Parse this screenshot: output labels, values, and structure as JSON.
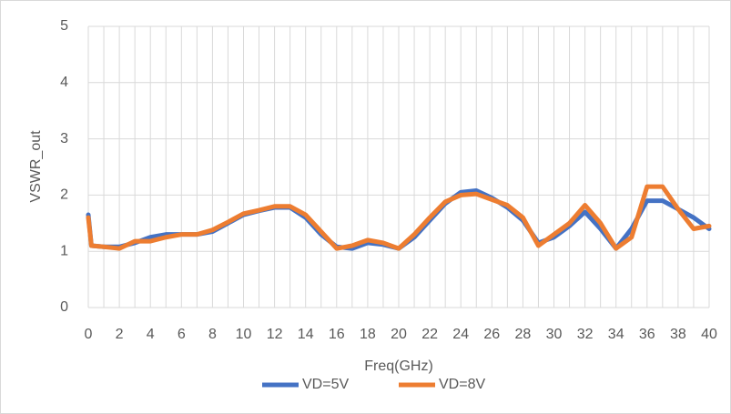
{
  "chart_data": {
    "type": "line",
    "x_label": "Freq(GHz)",
    "y_label": "VSWR_out",
    "x": [
      0,
      0.2,
      1,
      2,
      3,
      4,
      5,
      6,
      7,
      8,
      9,
      10,
      11,
      12,
      13,
      14,
      15,
      16,
      17,
      18,
      19,
      20,
      21,
      22,
      23,
      24,
      25,
      26,
      27,
      28,
      29,
      30,
      31,
      32,
      33,
      34,
      35,
      36,
      37,
      38,
      39,
      40
    ],
    "series": [
      {
        "name": "VD=5V",
        "color": "#4472c4",
        "values": [
          1.65,
          1.1,
          1.08,
          1.08,
          1.15,
          1.25,
          1.3,
          1.3,
          1.3,
          1.35,
          1.5,
          1.65,
          1.72,
          1.78,
          1.78,
          1.6,
          1.3,
          1.08,
          1.05,
          1.15,
          1.12,
          1.05,
          1.25,
          1.55,
          1.85,
          2.05,
          2.08,
          1.95,
          1.78,
          1.55,
          1.15,
          1.25,
          1.45,
          1.7,
          1.4,
          1.05,
          1.4,
          1.9,
          1.9,
          1.75,
          1.6,
          1.4
        ]
      },
      {
        "name": "VD=8V",
        "color": "#ed7d31",
        "values": [
          1.6,
          1.1,
          1.08,
          1.05,
          1.18,
          1.18,
          1.25,
          1.3,
          1.3,
          1.38,
          1.52,
          1.67,
          1.73,
          1.8,
          1.8,
          1.65,
          1.35,
          1.05,
          1.1,
          1.2,
          1.15,
          1.05,
          1.3,
          1.6,
          1.88,
          2.0,
          2.02,
          1.92,
          1.82,
          1.6,
          1.1,
          1.3,
          1.5,
          1.82,
          1.5,
          1.05,
          1.25,
          2.15,
          2.15,
          1.75,
          1.4,
          1.45
        ]
      }
    ],
    "xlim": [
      0,
      40
    ],
    "xticks": [
      0,
      2,
      4,
      6,
      8,
      10,
      12,
      14,
      16,
      18,
      20,
      22,
      24,
      26,
      28,
      30,
      32,
      34,
      36,
      38,
      40
    ],
    "x_minor_ticks": [
      1,
      3,
      5,
      7,
      9,
      11,
      13,
      15,
      17,
      19,
      21,
      23,
      25,
      27,
      29,
      31,
      33,
      35,
      37,
      39
    ],
    "ylim": [
      0,
      5
    ],
    "yticks": [
      0,
      1,
      2,
      3,
      4,
      5
    ],
    "grid": true,
    "legend": "bottom"
  }
}
